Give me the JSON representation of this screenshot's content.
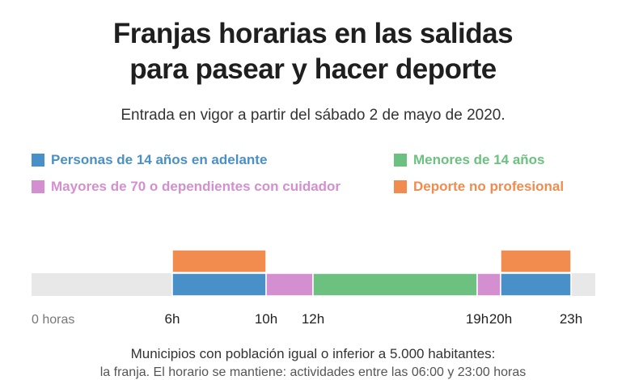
{
  "title_lines": [
    "Franjas horarias en las salidas",
    "para pasear y hacer deporte"
  ],
  "subtitle": "Entrada en vigor a partir del sábado 2 de mayo de 2020.",
  "legend": [
    {
      "label": "Personas de 14 años en adelante",
      "color": "#4a90c8"
    },
    {
      "label": "Menores de 14 años",
      "color": "#6cc080"
    },
    {
      "label": "Mayores de 70 o dependientes con cuidador",
      "color": "#d48fd0"
    },
    {
      "label": "Deporte no profesional",
      "color": "#f28c4e"
    }
  ],
  "chart_data": {
    "type": "timeline",
    "x_unit": "hours",
    "xlim": [
      0,
      24
    ],
    "background_color": "#e8e8e8",
    "ticks": [
      {
        "value": 0,
        "label": "0 horas"
      },
      {
        "value": 6,
        "label": "6h"
      },
      {
        "value": 10,
        "label": "10h"
      },
      {
        "value": 12,
        "label": "12h"
      },
      {
        "value": 19,
        "label": "19h"
      },
      {
        "value": 20,
        "label": "20h"
      },
      {
        "value": 23,
        "label": "23h"
      }
    ],
    "rows": [
      {
        "segments": [
          {
            "series": "Deporte no profesional",
            "start": 6,
            "end": 10
          },
          {
            "series": "Deporte no profesional",
            "start": 20,
            "end": 23
          }
        ]
      },
      {
        "segments": [
          {
            "series": "Personas de 14 años en adelante",
            "start": 6,
            "end": 10
          },
          {
            "series": "Mayores de 70 o dependientes con cuidador",
            "start": 10,
            "end": 12
          },
          {
            "series": "Menores de 14 años",
            "start": 12,
            "end": 19
          },
          {
            "series": "Mayores de 70 o dependientes con cuidador",
            "start": 19,
            "end": 20
          },
          {
            "series": "Personas de 14 años en adelante",
            "start": 20,
            "end": 23
          }
        ]
      }
    ]
  },
  "footer": "Municipios con población igual o inferior a 5.000 habitantes:",
  "footer_cut": "la franja. El horario se mantiene: actividades entre las 06:00 y 23:00 horas"
}
